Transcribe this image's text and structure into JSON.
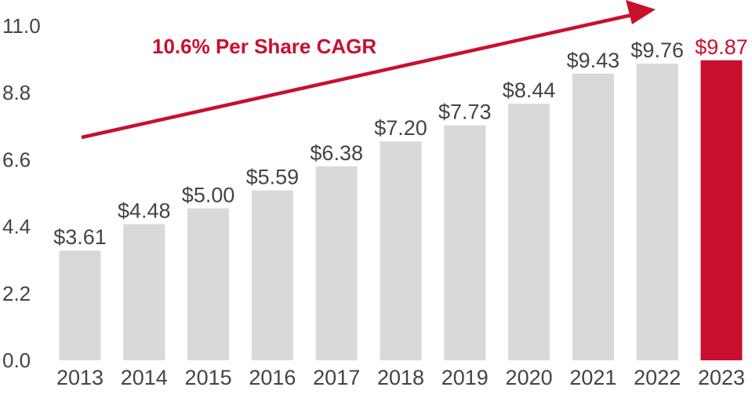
{
  "chart_data": {
    "type": "bar",
    "title": "",
    "xlabel": "",
    "ylabel": "",
    "ylim": [
      0,
      11
    ],
    "yticks": [
      "0.0",
      "2.2",
      "4.4",
      "6.6",
      "8.8",
      "11.0"
    ],
    "ytick_values": [
      0,
      2.2,
      4.4,
      6.6,
      8.8,
      11
    ],
    "grid": false,
    "categories": [
      "2013",
      "2014",
      "2015",
      "2016",
      "2017",
      "2018",
      "2019",
      "2020",
      "2021",
      "2022",
      "2023"
    ],
    "values": [
      3.61,
      4.48,
      5.0,
      5.59,
      6.38,
      7.2,
      7.73,
      8.44,
      9.43,
      9.76,
      9.87
    ],
    "data_labels": [
      "$3.61",
      "$4.48",
      "$5.00",
      "$5.59",
      "$6.38",
      "$7.20",
      "$7.73",
      "$8.44",
      "$9.43",
      "$9.76",
      "$9.87"
    ],
    "highlight_index": 10,
    "colors": {
      "bar": "#d9d9d9",
      "highlight": "#c8102e",
      "label": "#444444",
      "accent": "#c8102e"
    },
    "annotation": {
      "text": "10.6% Per Share CAGR",
      "arrow": "trend arrow rising from 2013 to 2022"
    }
  }
}
